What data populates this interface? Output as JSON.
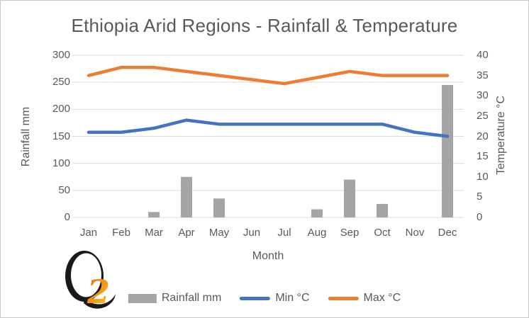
{
  "logo": {
    "digit": "2"
  },
  "chart_data": {
    "type": "combo-bar-line",
    "title": "Ethiopia Arid Regions - Rainfall & Temperature",
    "xlabel": "Month",
    "categories": [
      "Jan",
      "Feb",
      "Mar",
      "Apr",
      "May",
      "Jun",
      "Jul",
      "Aug",
      "Sep",
      "Oct",
      "Nov",
      "Dec"
    ],
    "left_axis": {
      "label": "Rainfall mm",
      "min": 0,
      "max": 300,
      "ticks": [
        300,
        250,
        200,
        150,
        100,
        50,
        0
      ]
    },
    "right_axis": {
      "label": "Temperature °C",
      "min": 0,
      "max": 40,
      "ticks": [
        40,
        35,
        30,
        25,
        20,
        15,
        10,
        5,
        0
      ]
    },
    "grid": "horizontal",
    "legend_position": "bottom",
    "series": [
      {
        "name": "Rainfall mm",
        "type": "bar",
        "axis": "left",
        "color": "#a5a5a5",
        "values": [
          0,
          0,
          10,
          75,
          35,
          0,
          0,
          15,
          70,
          25,
          0,
          245
        ]
      },
      {
        "name": "Min °C",
        "type": "line",
        "axis": "right",
        "color": "#4472c4",
        "values": [
          21,
          21,
          22,
          24,
          23,
          23,
          23,
          23,
          23,
          23,
          21,
          20
        ]
      },
      {
        "name": "Max °C",
        "type": "line",
        "axis": "right",
        "color": "#ed7d31",
        "values": [
          35,
          37,
          37,
          36,
          35,
          34,
          33,
          34.5,
          36,
          35,
          35,
          35
        ]
      }
    ],
    "colors": {
      "text": "#595959",
      "gridline": "#d9d9d9"
    }
  }
}
